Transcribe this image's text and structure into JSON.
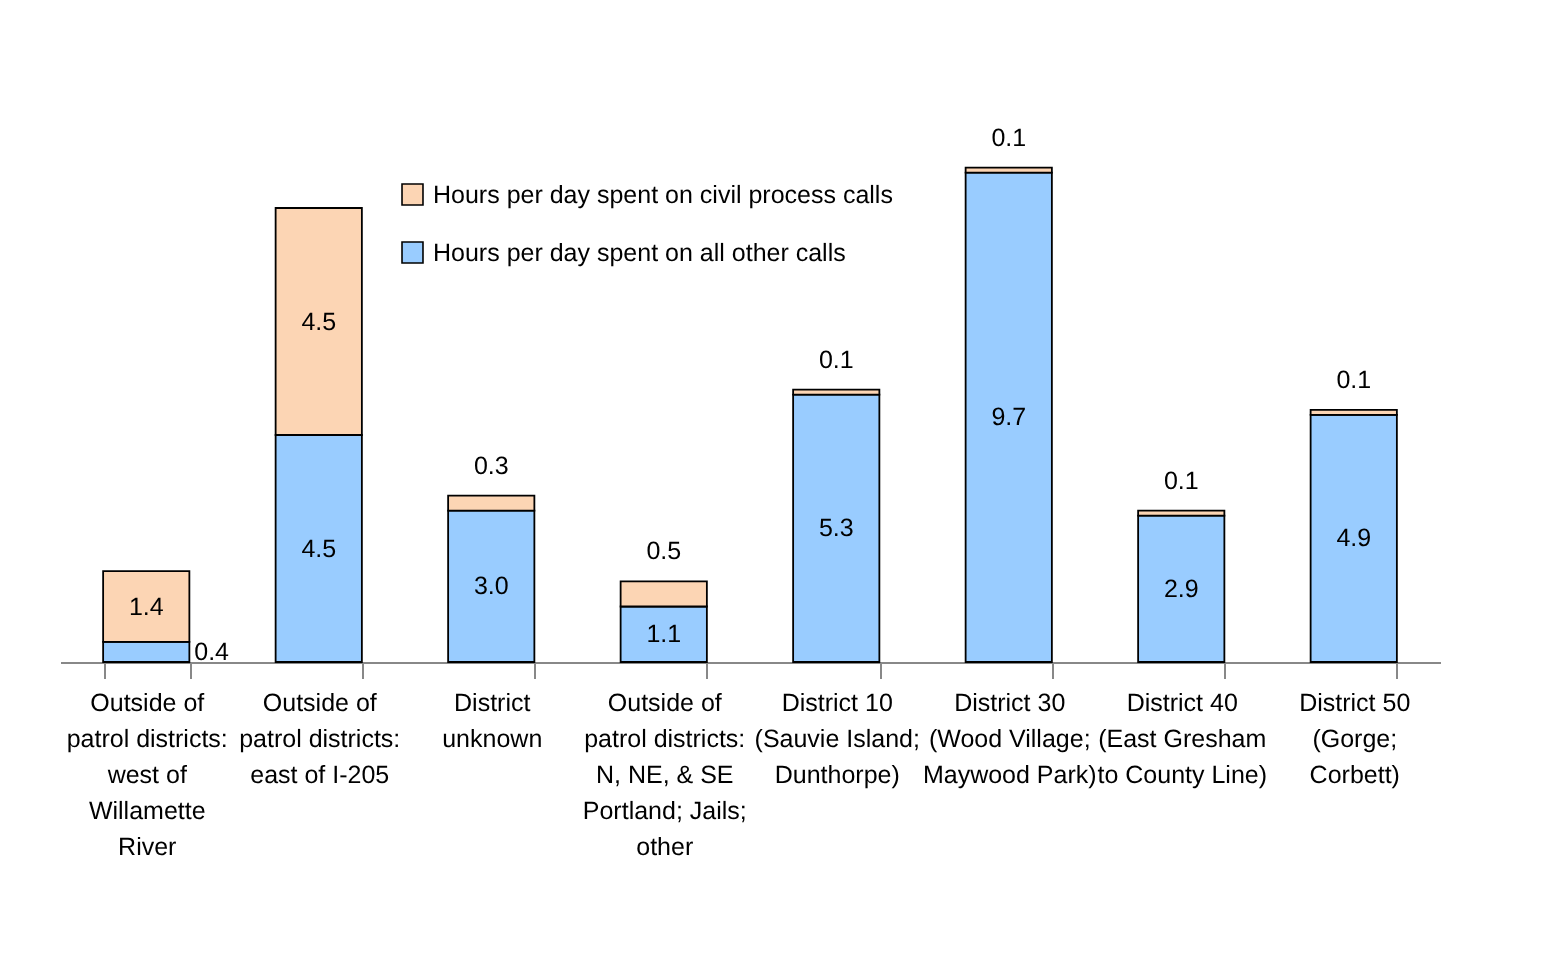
{
  "chart_data": {
    "type": "bar",
    "stacked": true,
    "tick_labels": "x",
    "legend": "top",
    "categories": [
      "Outside of\npatrol districts:\nwest of\nWillamette\nRiver",
      "Outside of\npatrol districts:\neast of I-205",
      "District\nunknown",
      "Outside of\npatrol districts:\nN, NE, & SE\nPortland; Jails;\nother",
      "District 10\n(Sauvie Island;\nDunthorpe)",
      "District 30\n(Wood Village;\nMaywood Park)",
      "District 40\n(East Gresham\nto County Line)",
      "District 50\n(Gorge;\nCorbett)"
    ],
    "series": [
      {
        "name": "Hours per day spent on all other calls",
        "color": "#99ccff",
        "values": [
          0.4,
          4.5,
          3.0,
          1.1,
          5.3,
          9.7,
          2.9,
          4.9
        ],
        "value_labels": [
          "0.4",
          "4.5",
          "3.0",
          "1.1",
          "5.3",
          "9.7",
          "2.9",
          "4.9"
        ]
      },
      {
        "name": "Hours per day spent on civil process calls",
        "color": "#fcd5b4",
        "values": [
          1.4,
          4.5,
          0.3,
          0.5,
          0.1,
          0.1,
          0.1,
          0.1
        ],
        "value_labels": [
          "1.4",
          "4.5",
          "0.3",
          "0.5",
          "0.1",
          "0.1",
          "0.1",
          "0.1"
        ]
      }
    ]
  }
}
